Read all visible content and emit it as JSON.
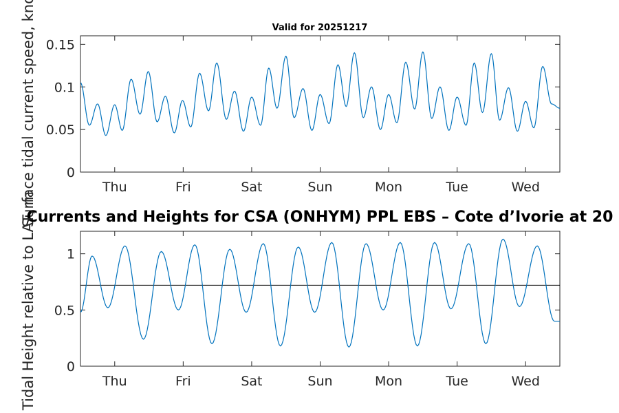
{
  "chart_data": [
    {
      "type": "line",
      "title": "Valid for 20251217",
      "xlabel": "",
      "ylabel": "Surface tidal current speed, knots",
      "ylim": [
        0,
        0.16
      ],
      "yticks": [
        0,
        0.05,
        0.1,
        0.15
      ],
      "ytick_labels": [
        "0",
        "0.05",
        "0.1",
        "0.15"
      ],
      "xlim_days": [
        0,
        7
      ],
      "xtick_positions_days": [
        0.5,
        1.5,
        2.5,
        3.5,
        4.5,
        5.5,
        6.5
      ],
      "xtick_labels": [
        "Thu",
        "Fri",
        "Sat",
        "Sun",
        "Mon",
        "Tue",
        "Wed"
      ],
      "line_color": "#0072bd",
      "series": [
        {
          "name": "current speed",
          "x_days": [
            0,
            0.13,
            0.25,
            0.37,
            0.5,
            0.61,
            0.74,
            0.87,
            0.99,
            1.12,
            1.24,
            1.37,
            1.49,
            1.61,
            1.74,
            1.87,
            1.99,
            2.13,
            2.25,
            2.38,
            2.5,
            2.63,
            2.75,
            2.87,
            3.0,
            3.12,
            3.25,
            3.38,
            3.5,
            3.63,
            3.76,
            3.88,
            4.0,
            4.13,
            4.25,
            4.38,
            4.5,
            4.62,
            4.75,
            4.88,
            5.0,
            5.13,
            5.25,
            5.38,
            5.5,
            5.63,
            5.75,
            5.87,
            6.0,
            6.12,
            6.25,
            6.38,
            6.5,
            6.62,
            6.75,
            6.88,
            7.0
          ],
          "y": [
            0.105,
            0.055,
            0.08,
            0.043,
            0.079,
            0.049,
            0.109,
            0.068,
            0.118,
            0.059,
            0.089,
            0.046,
            0.084,
            0.053,
            0.116,
            0.072,
            0.128,
            0.062,
            0.095,
            0.048,
            0.088,
            0.055,
            0.122,
            0.075,
            0.136,
            0.064,
            0.098,
            0.049,
            0.091,
            0.057,
            0.126,
            0.077,
            0.14,
            0.064,
            0.1,
            0.05,
            0.091,
            0.058,
            0.129,
            0.074,
            0.141,
            0.063,
            0.1,
            0.049,
            0.088,
            0.055,
            0.128,
            0.07,
            0.139,
            0.061,
            0.099,
            0.048,
            0.083,
            0.052,
            0.124,
            0.08,
            0.075
          ]
        }
      ]
    },
    {
      "type": "line",
      "title": "Currents and Heights for CSA (ONHYM) PPL EBS  – Cote d’Ivorie at 20",
      "xlabel": "",
      "ylabel": "Tidal Height relative to LAT, m",
      "ylim": [
        0,
        1.2
      ],
      "yticks": [
        0,
        0.5,
        1
      ],
      "ytick_labels": [
        "0",
        "0.5",
        "1"
      ],
      "xlim_days": [
        0,
        7
      ],
      "xtick_positions_days": [
        0.5,
        1.5,
        2.5,
        3.5,
        4.5,
        5.5,
        6.5
      ],
      "xtick_labels": [
        "Thu",
        "Fri",
        "Sat",
        "Sun",
        "Mon",
        "Tue",
        "Wed"
      ],
      "line_color": "#0072bd",
      "reference_line": {
        "name": "mean level",
        "y": 0.72,
        "color": "#000000"
      },
      "series": [
        {
          "name": "tidal height",
          "x_days": [
            0,
            0.17,
            0.4,
            0.65,
            0.92,
            1.18,
            1.43,
            1.67,
            1.92,
            2.18,
            2.42,
            2.67,
            2.92,
            3.18,
            3.42,
            3.67,
            3.92,
            4.17,
            4.42,
            4.67,
            4.92,
            5.17,
            5.41,
            5.67,
            5.92,
            6.17,
            6.41,
            6.67,
            6.92,
            7.0
          ],
          "y": [
            0.48,
            0.98,
            0.52,
            1.07,
            0.24,
            1.02,
            0.5,
            1.08,
            0.2,
            1.04,
            0.48,
            1.09,
            0.18,
            1.06,
            0.48,
            1.1,
            0.17,
            1.09,
            0.5,
            1.1,
            0.18,
            1.1,
            0.51,
            1.09,
            0.2,
            1.13,
            0.53,
            1.07,
            0.4,
            0.4
          ]
        }
      ]
    }
  ]
}
